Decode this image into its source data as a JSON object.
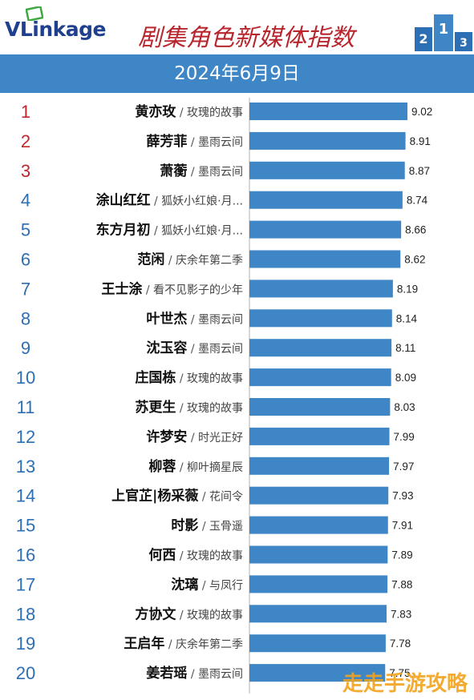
{
  "header": {
    "logo": "VLinkage",
    "title": "剧集角色新媒体指数",
    "date": "2024年6月9日",
    "podium_numbers": [
      "2",
      "1",
      "3"
    ]
  },
  "colors": {
    "bar": "#3f86c6",
    "date_band": "#3f86c6",
    "rank_top3": "#c0272d",
    "rank_rest": "#2d6fb4",
    "title": "#b8262d"
  },
  "chart_data": {
    "type": "bar",
    "orientation": "horizontal",
    "title": "剧集角色新媒体指数",
    "xlim": [
      0,
      9.02
    ],
    "grid": false,
    "rows": [
      {
        "rank": "1",
        "name": "黄亦玫",
        "drama": "玫瑰的故事",
        "value": 9.02
      },
      {
        "rank": "2",
        "name": "薛芳菲",
        "drama": "墨雨云间",
        "value": 8.91
      },
      {
        "rank": "3",
        "name": "萧蘅",
        "drama": "墨雨云间",
        "value": 8.87
      },
      {
        "rank": "4",
        "name": "涂山红红",
        "drama": "狐妖小红娘·月...",
        "value": 8.74
      },
      {
        "rank": "5",
        "name": "东方月初",
        "drama": "狐妖小红娘·月...",
        "value": 8.66
      },
      {
        "rank": "6",
        "name": "范闲",
        "drama": "庆余年第二季",
        "value": 8.62
      },
      {
        "rank": "7",
        "name": "王士涂",
        "drama": "看不见影子的少年",
        "value": 8.19
      },
      {
        "rank": "8",
        "name": "叶世杰",
        "drama": "墨雨云间",
        "value": 8.14
      },
      {
        "rank": "9",
        "name": "沈玉容",
        "drama": "墨雨云间",
        "value": 8.11
      },
      {
        "rank": "10",
        "name": "庄国栋",
        "drama": "玫瑰的故事",
        "value": 8.09
      },
      {
        "rank": "11",
        "name": "苏更生",
        "drama": "玫瑰的故事",
        "value": 8.03
      },
      {
        "rank": "12",
        "name": "许梦安",
        "drama": "时光正好",
        "value": 7.99
      },
      {
        "rank": "13",
        "name": "柳蓉",
        "drama": "柳叶摘星辰",
        "value": 7.97
      },
      {
        "rank": "14",
        "name": "上官芷|杨采薇",
        "drama": "花间令",
        "value": 7.93
      },
      {
        "rank": "15",
        "name": "时影",
        "drama": "玉骨遥",
        "value": 7.91
      },
      {
        "rank": "16",
        "name": "何西",
        "drama": "玫瑰的故事",
        "value": 7.89
      },
      {
        "rank": "17",
        "name": "沈璃",
        "drama": "与凤行",
        "value": 7.88
      },
      {
        "rank": "18",
        "name": "方协文",
        "drama": "玫瑰的故事",
        "value": 7.83
      },
      {
        "rank": "19",
        "name": "王启年",
        "drama": "庆余年第二季",
        "value": 7.78
      },
      {
        "rank": "20",
        "name": "姜若瑶",
        "drama": "墨雨云间",
        "value": 7.75
      }
    ]
  },
  "watermark": "走走手游攻略"
}
